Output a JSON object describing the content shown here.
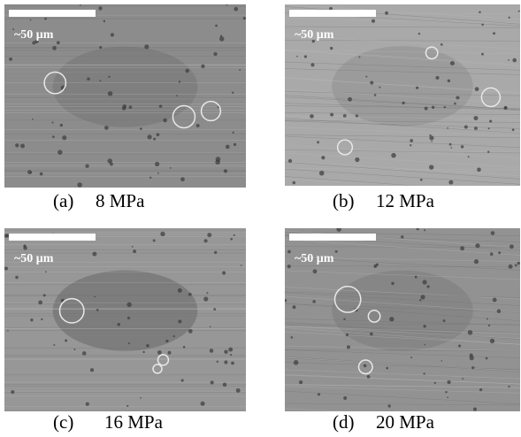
{
  "panels": [
    {
      "label": "(a)",
      "caption": "8 MPa",
      "scale": "~50 μm"
    },
    {
      "label": "(b)",
      "caption": "12 MPa",
      "scale": "~50 μm"
    },
    {
      "label": "(c)",
      "caption": "16 MPa",
      "scale": "~50 μm"
    },
    {
      "label": "(d)",
      "caption": "20 MPa",
      "scale": "~50 μm"
    }
  ]
}
